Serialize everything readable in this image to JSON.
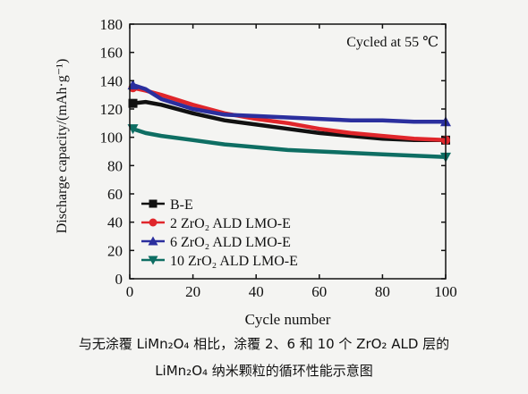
{
  "chart_data": {
    "type": "line",
    "xlabel": "Cycle number",
    "ylabel": "Discharge capacity/(mAh·g⁻¹)",
    "xlim": [
      0,
      100
    ],
    "ylim": [
      0,
      180
    ],
    "xticks": [
      0,
      20,
      40,
      60,
      80,
      100
    ],
    "yticks": [
      0,
      20,
      40,
      60,
      80,
      100,
      120,
      140,
      160,
      180
    ],
    "grid": false,
    "legend_position": "bottom-left",
    "annotation": "Cycled at 55 ℃",
    "series": [
      {
        "name": "B-E",
        "color": "#111111",
        "marker": "square",
        "x": [
          1,
          5,
          10,
          20,
          30,
          40,
          50,
          60,
          70,
          80,
          90,
          100
        ],
        "y": [
          124,
          125,
          123,
          117,
          112,
          109,
          106,
          103,
          101,
          99,
          98,
          98
        ]
      },
      {
        "name": "2 ZrO₂ ALD LMO-E",
        "color": "#e0262b",
        "marker": "circle",
        "x": [
          1,
          5,
          10,
          20,
          30,
          40,
          50,
          60,
          70,
          80,
          90,
          100
        ],
        "y": [
          135,
          133,
          130,
          123,
          117,
          113,
          110,
          106,
          103,
          101,
          99,
          98
        ]
      },
      {
        "name": "6 ZrO₂ ALD LMO-E",
        "color": "#2b2f9e",
        "marker": "triangle-up",
        "x": [
          1,
          5,
          10,
          20,
          30,
          40,
          50,
          60,
          70,
          80,
          90,
          100
        ],
        "y": [
          137,
          134,
          127,
          120,
          116,
          115,
          114,
          113,
          112,
          112,
          111,
          111
        ]
      },
      {
        "name": "10 ZrO₂ ALD LMO-E",
        "color": "#0e6e63",
        "marker": "triangle-down",
        "x": [
          1,
          5,
          10,
          20,
          30,
          40,
          50,
          60,
          70,
          80,
          90,
          100
        ],
        "y": [
          106,
          103,
          101,
          98,
          95,
          93,
          91,
          90,
          89,
          88,
          87,
          86
        ]
      }
    ]
  },
  "caption": {
    "line1": "与无涂覆 LiMn₂O₄ 相比，涂覆 2、6 和 10 个 ZrO₂ ALD 层的",
    "line2": "LiMn₂O₄ 纳米颗粒的循环性能示意图"
  }
}
